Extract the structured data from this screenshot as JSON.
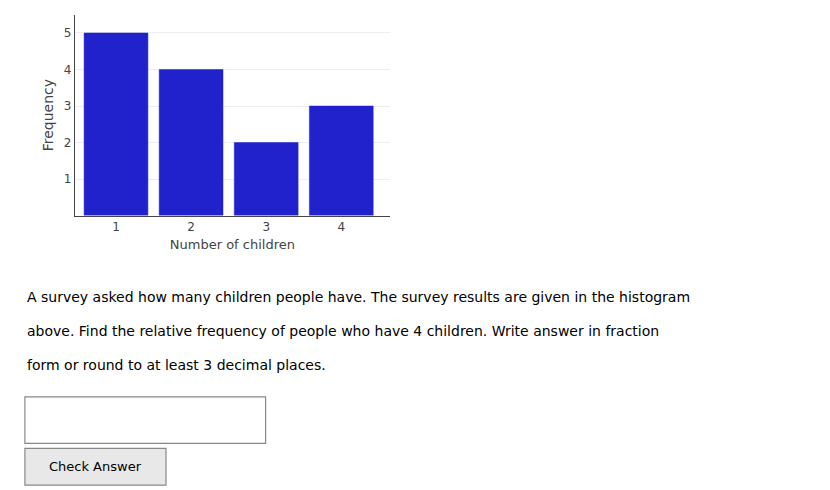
{
  "chart_data": {
    "type": "bar",
    "x": [
      1,
      2,
      3,
      4
    ],
    "values": [
      5,
      4,
      2,
      3
    ],
    "color": "#2222cc",
    "xlabel": "Number of children",
    "ylabel": "Frequency",
    "xlim": [
      0.45,
      4.65
    ],
    "ylim": [
      0,
      5.5
    ],
    "xticks": [
      1,
      2,
      3,
      4
    ],
    "yticks": [
      1,
      2,
      3,
      4,
      5
    ],
    "grid": true,
    "annotations": [
      "A survey asked how many children people have. The survey results are given in the histogram",
      "above. Find the relative frequency of people who have 4 children. Write answer in fraction",
      "form or round to at least 3 decimal places.",
      "Check Answer"
    ]
  }
}
